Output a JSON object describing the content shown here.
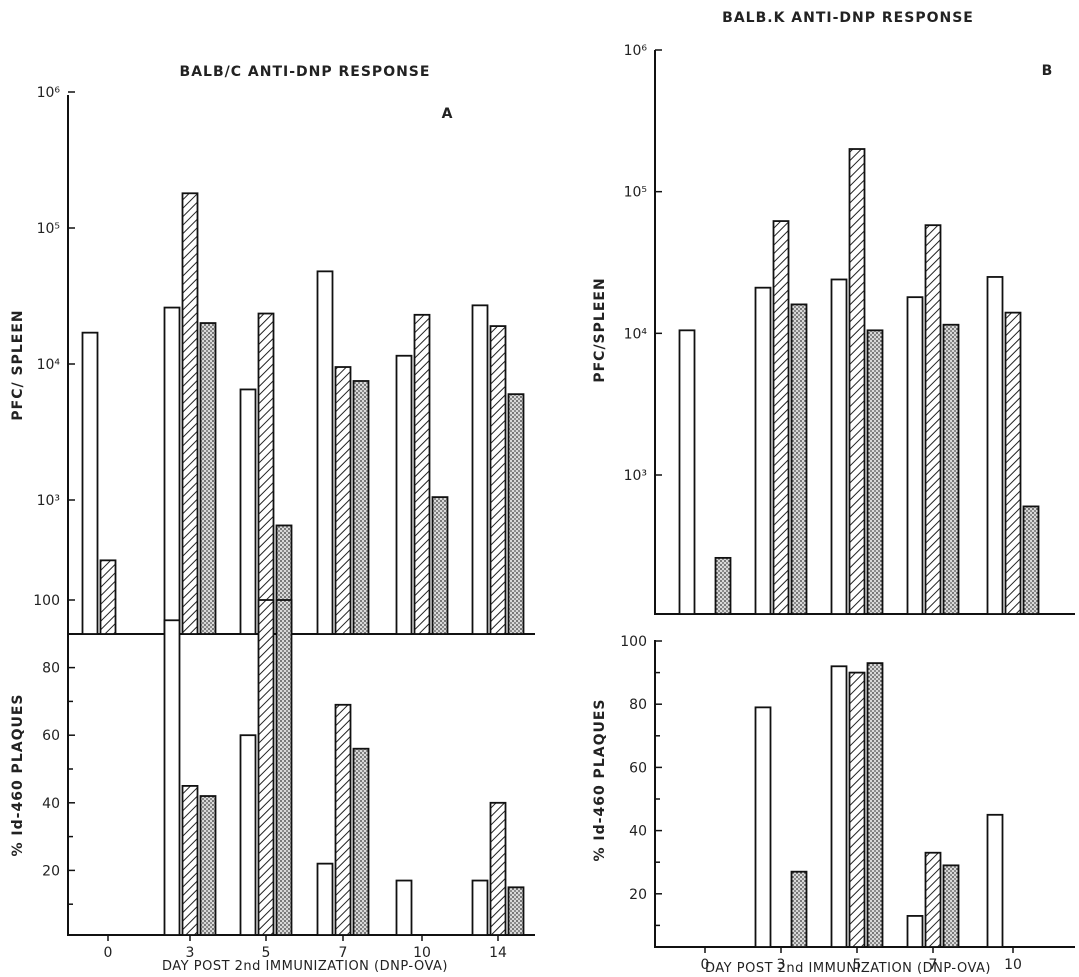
{
  "figure": {
    "x_axis_label": "DAY POST 2nd IMMUNIZATION (DNP-OVA)"
  },
  "chart_data": [
    {
      "id": "A-pfc",
      "type": "bar",
      "title": "BALB/C ANTI-DNP RESPONSE",
      "panel_label": "A",
      "ylabel": "PFC/ SPLEEN",
      "yscale": "log",
      "ylim": [
        100,
        1000000
      ],
      "y_tick_labels": [
        "10³",
        "10⁴",
        "10⁵",
        "10⁶"
      ],
      "categories": [
        "0",
        "3",
        "5",
        "7",
        "10",
        "14"
      ],
      "series": [
        {
          "pattern": "open",
          "values": [
            17000,
            26000,
            6500,
            48000,
            11500,
            27000
          ]
        },
        {
          "pattern": "hatched",
          "values": [
            360,
            180000,
            23500,
            9500,
            23000,
            19000
          ]
        },
        {
          "pattern": "stippled",
          "values": [
            null,
            20000,
            650,
            7500,
            1050,
            6000
          ]
        }
      ]
    },
    {
      "id": "A-id",
      "type": "bar",
      "ylabel": "% Id-460 PLAQUES",
      "xlabel": "DAY POST 2nd IMMUNIZATION (DNP-OVA)",
      "ylim": [
        0,
        100
      ],
      "y_tick_labels": [
        "20",
        "40",
        "60",
        "80",
        "100"
      ],
      "categories": [
        "0",
        "3",
        "5",
        "7",
        "10",
        "14"
      ],
      "series": [
        {
          "pattern": "open",
          "values": [
            null,
            94,
            60,
            22,
            17,
            17
          ]
        },
        {
          "pattern": "hatched",
          "values": [
            null,
            45,
            100,
            69,
            null,
            40
          ]
        },
        {
          "pattern": "stippled",
          "values": [
            null,
            42,
            100,
            56,
            null,
            15
          ]
        }
      ]
    },
    {
      "id": "B-pfc",
      "type": "bar",
      "title": "BALB.K ANTI-DNP RESPONSE",
      "panel_label": "B",
      "ylabel": "PFC/SPLEEN",
      "yscale": "log",
      "ylim": [
        100,
        1000000
      ],
      "y_tick_labels": [
        "10³",
        "10⁴",
        "10⁵",
        "10⁶"
      ],
      "categories": [
        "0",
        "3",
        "5",
        "7",
        "10"
      ],
      "series": [
        {
          "pattern": "open",
          "values": [
            10500,
            21000,
            24000,
            18000,
            25000
          ]
        },
        {
          "pattern": "hatched",
          "values": [
            null,
            62000,
            200000,
            58000,
            14000
          ]
        },
        {
          "pattern": "stippled",
          "values": [
            260,
            16000,
            10500,
            11500,
            600
          ]
        }
      ]
    },
    {
      "id": "B-id",
      "type": "bar",
      "ylabel": "% Id-460 PLAQUES",
      "xlabel": "DAY POST 2nd IMMUNIZATION (DNP-OVA)",
      "ylim": [
        0,
        100
      ],
      "y_tick_labels": [
        "20",
        "40",
        "60",
        "80",
        "100"
      ],
      "categories": [
        "0",
        "3",
        "5",
        "7",
        "10"
      ],
      "series": [
        {
          "pattern": "open",
          "values": [
            null,
            79,
            92,
            13,
            45
          ]
        },
        {
          "pattern": "hatched",
          "values": [
            null,
            null,
            90,
            33,
            null
          ]
        },
        {
          "pattern": "stippled",
          "values": [
            null,
            27,
            93,
            29,
            null
          ]
        }
      ]
    }
  ]
}
